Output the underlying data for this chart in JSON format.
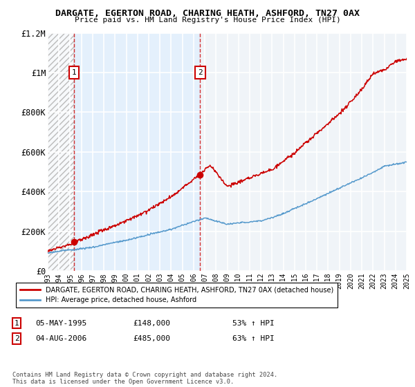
{
  "title": "DARGATE, EGERTON ROAD, CHARING HEATH, ASHFORD, TN27 0AX",
  "subtitle": "Price paid vs. HM Land Registry's House Price Index (HPI)",
  "x_start_year": 1993,
  "x_end_year": 2025,
  "y_min": 0,
  "y_max": 1200000,
  "y_ticks": [
    0,
    200000,
    400000,
    600000,
    800000,
    1000000,
    1200000
  ],
  "y_tick_labels": [
    "£0",
    "£200K",
    "£400K",
    "£600K",
    "£800K",
    "£1M",
    "£1.2M"
  ],
  "sale1_year": 1995.35,
  "sale1_price": 148000,
  "sale2_year": 2006.58,
  "sale2_price": 485000,
  "sale1_date": "05-MAY-1995",
  "sale1_display": "£148,000",
  "sale1_hpi_pct": "53% ↑ HPI",
  "sale2_date": "04-AUG-2006",
  "sale2_display": "£485,000",
  "sale2_hpi_pct": "63% ↑ HPI",
  "hpi_line_color": "#5599cc",
  "sale_line_color": "#cc0000",
  "marker_color": "#cc0000",
  "background_color": "#ffffff",
  "plot_bg_color": "#f0f4f8",
  "hatch_bg_color": "#dde8f0",
  "grid_color": "#ffffff",
  "legend_label_sale": "DARGATE, EGERTON ROAD, CHARING HEATH, ASHFORD, TN27 0AX (detached house)",
  "legend_label_hpi": "HPI: Average price, detached house, Ashford",
  "footer": "Contains HM Land Registry data © Crown copyright and database right 2024.\nThis data is licensed under the Open Government Licence v3.0."
}
